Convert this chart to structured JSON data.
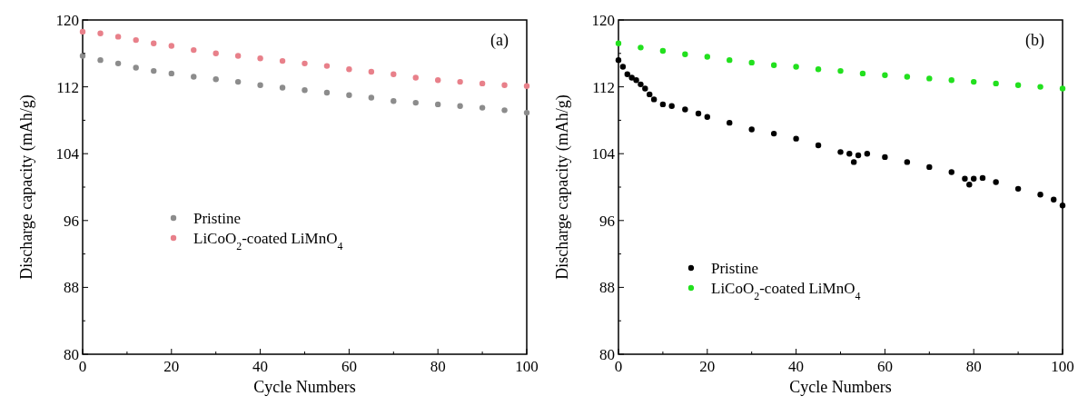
{
  "chart_data": [
    {
      "type": "scatter",
      "xlabel": "Cycle Numbers",
      "ylabel": "Discharge capacity (mAh/g)",
      "annotations": [
        "(a)"
      ],
      "legend": "left",
      "marker": "circle",
      "xlim": [
        0,
        100
      ],
      "ylim": [
        80,
        120
      ],
      "xticks": [
        0,
        {
          "value": 10,
          "label": null
        },
        20,
        {
          "value": 30,
          "label": null
        },
        40,
        {
          "value": 50,
          "label": null
        },
        60,
        {
          "value": 70,
          "label": null
        },
        80,
        {
          "value": 90,
          "label": null
        },
        100
      ],
      "yticks": [
        80,
        {
          "value": 84,
          "label": null
        },
        88,
        {
          "value": 92,
          "label": null
        },
        96,
        {
          "value": 100,
          "label": null
        },
        104,
        {
          "value": 108,
          "label": null
        },
        112,
        {
          "value": 116,
          "label": null
        },
        120
      ],
      "series": [
        {
          "name": "Pristine",
          "color": "#8c8c8c",
          "x": [
            0,
            4,
            8,
            12,
            16,
            20,
            25,
            30,
            35,
            40,
            45,
            50,
            55,
            60,
            65,
            70,
            75,
            80,
            85,
            90,
            95,
            100
          ],
          "values": [
            115.7,
            115.2,
            114.8,
            114.3,
            113.9,
            113.6,
            113.2,
            112.9,
            112.6,
            112.2,
            111.9,
            111.6,
            111.3,
            111.0,
            110.7,
            110.3,
            110.1,
            109.9,
            109.7,
            109.5,
            109.2,
            108.9
          ]
        },
        {
          "name": "LiCoO$_{2}$-coated LiMnO$_{4}$",
          "color": "#e8808a",
          "x": [
            0,
            4,
            8,
            12,
            16,
            20,
            25,
            30,
            35,
            40,
            45,
            50,
            55,
            60,
            65,
            70,
            75,
            80,
            85,
            90,
            95,
            100
          ],
          "values": [
            118.6,
            118.4,
            118.0,
            117.6,
            117.2,
            116.9,
            116.4,
            116.0,
            115.7,
            115.4,
            115.1,
            114.8,
            114.5,
            114.1,
            113.8,
            113.5,
            113.1,
            112.8,
            112.6,
            112.4,
            112.2,
            112.1
          ]
        }
      ]
    },
    {
      "type": "scatter",
      "xlabel": "Cycle Numbers",
      "ylabel": "Discharge capacity (mAh/g)",
      "annotations": [
        "(b)"
      ],
      "legend": "bottom left",
      "marker": "circle",
      "xlim": [
        0,
        100
      ],
      "ylim": [
        80,
        120
      ],
      "xticks": [
        0,
        {
          "value": 10,
          "label": null
        },
        20,
        {
          "value": 30,
          "label": null
        },
        40,
        {
          "value": 50,
          "label": null
        },
        60,
        {
          "value": 70,
          "label": null
        },
        80,
        {
          "value": 90,
          "label": null
        },
        100
      ],
      "yticks": [
        80,
        {
          "value": 84,
          "label": null
        },
        88,
        {
          "value": 92,
          "label": null
        },
        96,
        {
          "value": 100,
          "label": null
        },
        104,
        {
          "value": 108,
          "label": null
        },
        112,
        {
          "value": 116,
          "label": null
        },
        120
      ],
      "series": [
        {
          "name": "Pristine",
          "color": "#000000",
          "x": [
            0,
            1,
            2,
            3,
            4,
            5,
            6,
            7,
            8,
            10,
            12,
            15,
            18,
            20,
            25,
            30,
            35,
            40,
            45,
            50,
            52,
            53,
            54,
            56,
            60,
            65,
            70,
            75,
            78,
            79,
            80,
            82,
            85,
            90,
            95,
            98,
            100
          ],
          "values": [
            115.2,
            114.4,
            113.5,
            113.1,
            112.8,
            112.3,
            111.8,
            111.1,
            110.5,
            109.9,
            109.7,
            109.3,
            108.8,
            108.4,
            107.7,
            106.9,
            106.4,
            105.8,
            105.0,
            104.2,
            104.0,
            103.0,
            103.8,
            104.0,
            103.6,
            103.0,
            102.4,
            101.8,
            101.0,
            100.3,
            101.0,
            101.1,
            100.6,
            99.8,
            99.1,
            98.5,
            97.8
          ]
        },
        {
          "name": "LiCoO$_{2}$-coated LiMnO$_{4}$",
          "color": "#22e01e",
          "x": [
            0,
            5,
            10,
            15,
            20,
            25,
            30,
            35,
            40,
            45,
            50,
            55,
            60,
            65,
            70,
            75,
            80,
            85,
            90,
            95,
            100
          ],
          "values": [
            117.2,
            116.7,
            116.3,
            115.9,
            115.6,
            115.2,
            114.9,
            114.6,
            114.4,
            114.1,
            113.9,
            113.6,
            113.4,
            113.2,
            113.0,
            112.8,
            112.6,
            112.4,
            112.2,
            112.0,
            111.8
          ]
        }
      ]
    }
  ]
}
